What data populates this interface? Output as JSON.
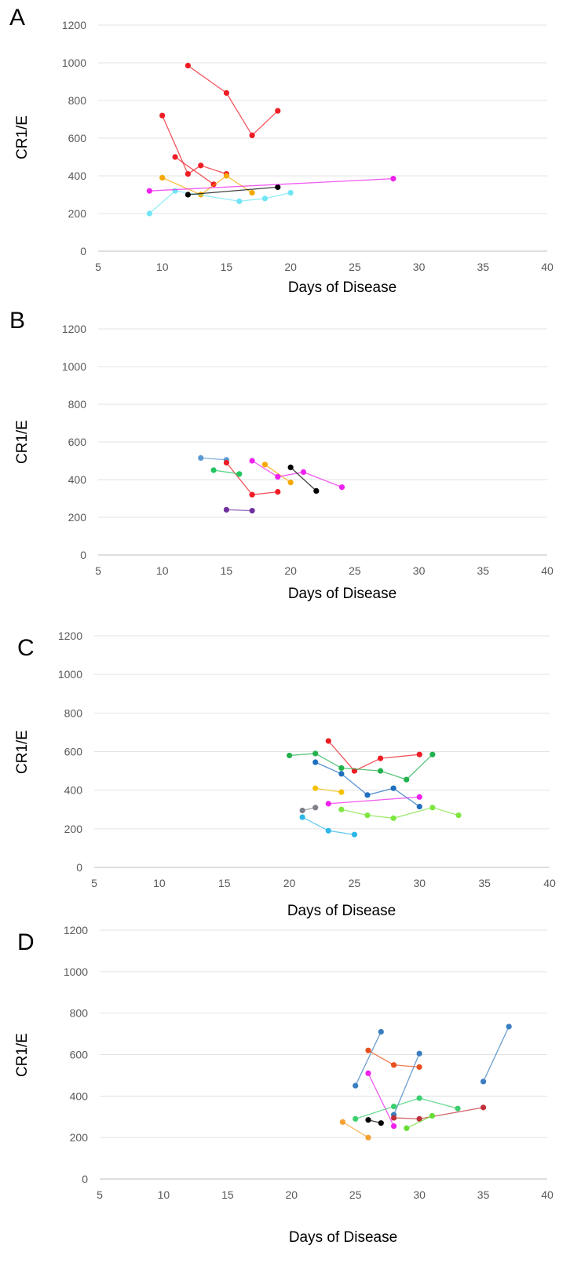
{
  "chart_data": [
    {
      "panel": "A",
      "type": "scatter",
      "xlabel": "Days of Disease",
      "ylabel": "CR1/E",
      "xlim": [
        5,
        40
      ],
      "ylim": [
        0,
        1200
      ],
      "x_ticks": [
        "5",
        "10",
        "15",
        "20",
        "25",
        "30",
        "35",
        "40"
      ],
      "y_ticks": [
        "0",
        "200",
        "400",
        "600",
        "800",
        "1000",
        "1200"
      ],
      "grid": "horizontal",
      "series": [
        {
          "color": "#ee1c25",
          "points": [
            [
              12,
              985
            ],
            [
              15,
              840
            ],
            [
              17,
              615
            ],
            [
              19,
              745
            ]
          ]
        },
        {
          "color": "#ee1c25",
          "points": [
            [
              10,
              720
            ],
            [
              12,
              410
            ],
            [
              13,
              455
            ],
            [
              15,
              410
            ]
          ]
        },
        {
          "color": "#ee1c25",
          "points": [
            [
              11,
              500
            ],
            [
              14,
              355
            ]
          ]
        },
        {
          "color": "#f5a800",
          "points": [
            [
              10,
              390
            ],
            [
              13,
              300
            ],
            [
              15,
              400
            ],
            [
              17,
              310
            ]
          ]
        },
        {
          "color": "#70e5f5",
          "points": [
            [
              9,
              200
            ],
            [
              11,
              320
            ],
            [
              16,
              265
            ],
            [
              18,
              280
            ],
            [
              20,
              310
            ]
          ]
        },
        {
          "color": "#000000",
          "points": [
            [
              12,
              300
            ],
            [
              19,
              340
            ]
          ]
        },
        {
          "color": "#ee22ee",
          "points": [
            [
              9,
              320
            ],
            [
              28,
              385
            ]
          ]
        }
      ]
    },
    {
      "panel": "B",
      "type": "scatter",
      "xlabel": "Days of Disease",
      "ylabel": "CR1/E",
      "xlim": [
        5,
        40
      ],
      "ylim": [
        0,
        1200
      ],
      "x_ticks": [
        "5",
        "10",
        "15",
        "20",
        "25",
        "30",
        "35",
        "40"
      ],
      "y_ticks": [
        "0",
        "200",
        "400",
        "600",
        "800",
        "1000",
        "1200"
      ],
      "grid": "horizontal",
      "series": [
        {
          "color": "#5b9bd5",
          "points": [
            [
              13,
              515
            ],
            [
              15,
              505
            ]
          ]
        },
        {
          "color": "#ee1c25",
          "points": [
            [
              15,
              490
            ],
            [
              17,
              320
            ],
            [
              19,
              335
            ]
          ]
        },
        {
          "color": "#22c55e",
          "points": [
            [
              14,
              450
            ],
            [
              16,
              430
            ]
          ]
        },
        {
          "color": "#7030a0",
          "points": [
            [
              15,
              240
            ],
            [
              17,
              235
            ]
          ]
        },
        {
          "color": "#f5a800",
          "points": [
            [
              18,
              480
            ],
            [
              20,
              385
            ]
          ]
        },
        {
          "color": "#ee22ee",
          "points": [
            [
              17,
              500
            ],
            [
              19,
              415
            ],
            [
              21,
              440
            ],
            [
              24,
              360
            ]
          ]
        },
        {
          "color": "#000000",
          "points": [
            [
              20,
              465
            ],
            [
              22,
              340
            ]
          ]
        }
      ]
    },
    {
      "panel": "C",
      "type": "scatter",
      "xlabel": "Days of Disease",
      "ylabel": "CR1/E",
      "xlim": [
        5,
        40
      ],
      "ylim": [
        0,
        1200
      ],
      "x_ticks": [
        "5",
        "10",
        "15",
        "20",
        "25",
        "30",
        "35",
        "40"
      ],
      "y_ticks": [
        "0",
        "200",
        "400",
        "600",
        "800",
        "1000",
        "1200"
      ],
      "grid": "horizontal",
      "series": [
        {
          "color": "#ee1c25",
          "points": [
            [
              23,
              655
            ],
            [
              25,
              500
            ],
            [
              27,
              565
            ],
            [
              30,
              585
            ]
          ]
        },
        {
          "color": "#22b14c",
          "points": [
            [
              20,
              580
            ],
            [
              22,
              590
            ],
            [
              24,
              515
            ],
            [
              27,
              500
            ],
            [
              29,
              455
            ],
            [
              31,
              585
            ]
          ]
        },
        {
          "color": "#1f6fbf",
          "points": [
            [
              22,
              545
            ],
            [
              24,
              485
            ],
            [
              26,
              375
            ],
            [
              28,
              410
            ],
            [
              30,
              315
            ]
          ]
        },
        {
          "color": "#f5c000",
          "points": [
            [
              22,
              410
            ],
            [
              24,
              390
            ]
          ]
        },
        {
          "color": "#ee22ee",
          "points": [
            [
              23,
              330
            ],
            [
              30,
              365
            ]
          ]
        },
        {
          "color": "#80808a",
          "points": [
            [
              21,
              295
            ],
            [
              22,
              310
            ]
          ]
        },
        {
          "color": "#7fe640",
          "points": [
            [
              24,
              300
            ],
            [
              26,
              270
            ],
            [
              28,
              255
            ],
            [
              31,
              310
            ],
            [
              33,
              270
            ]
          ]
        },
        {
          "color": "#2db7e8",
          "points": [
            [
              21,
              260
            ],
            [
              23,
              190
            ],
            [
              25,
              170
            ]
          ]
        }
      ]
    },
    {
      "panel": "D",
      "type": "scatter",
      "xlabel": "Days of Disease",
      "ylabel": "CR1/E",
      "xlim": [
        5,
        40
      ],
      "ylim": [
        0,
        1200
      ],
      "x_ticks": [
        "5",
        "10",
        "15",
        "20",
        "25",
        "30",
        "35",
        "40"
      ],
      "y_ticks": [
        "0",
        "200",
        "400",
        "600",
        "800",
        "1000",
        "1200"
      ],
      "grid": "horizontal",
      "series": [
        {
          "color": "#3a7ebf",
          "points": [
            [
              25,
              450
            ],
            [
              27,
              710
            ]
          ]
        },
        {
          "color": "#e8501e",
          "points": [
            [
              26,
              620
            ],
            [
              28,
              550
            ],
            [
              30,
              540
            ]
          ]
        },
        {
          "color": "#3a7ebf",
          "points": [
            [
              28,
              310
            ],
            [
              30,
              605
            ]
          ]
        },
        {
          "color": "#3a7ebf",
          "points": [
            [
              35,
              470
            ],
            [
              37,
              735
            ]
          ]
        },
        {
          "color": "#ee22ee",
          "points": [
            [
              26,
              510
            ],
            [
              28,
              255
            ]
          ]
        },
        {
          "color": "#3ccf70",
          "points": [
            [
              25,
              290
            ],
            [
              28,
              350
            ],
            [
              30,
              390
            ],
            [
              33,
              340
            ]
          ]
        },
        {
          "color": "#c0303a",
          "points": [
            [
              28,
              295
            ],
            [
              30,
              290
            ],
            [
              35,
              345
            ]
          ]
        },
        {
          "color": "#66dd33",
          "points": [
            [
              29,
              245
            ],
            [
              31,
              305
            ]
          ]
        },
        {
          "color": "#000000",
          "points": [
            [
              26,
              285
            ],
            [
              27,
              270
            ]
          ]
        },
        {
          "color": "#f5a030",
          "points": [
            [
              24,
              275
            ],
            [
              26,
              200
            ]
          ]
        }
      ]
    }
  ]
}
